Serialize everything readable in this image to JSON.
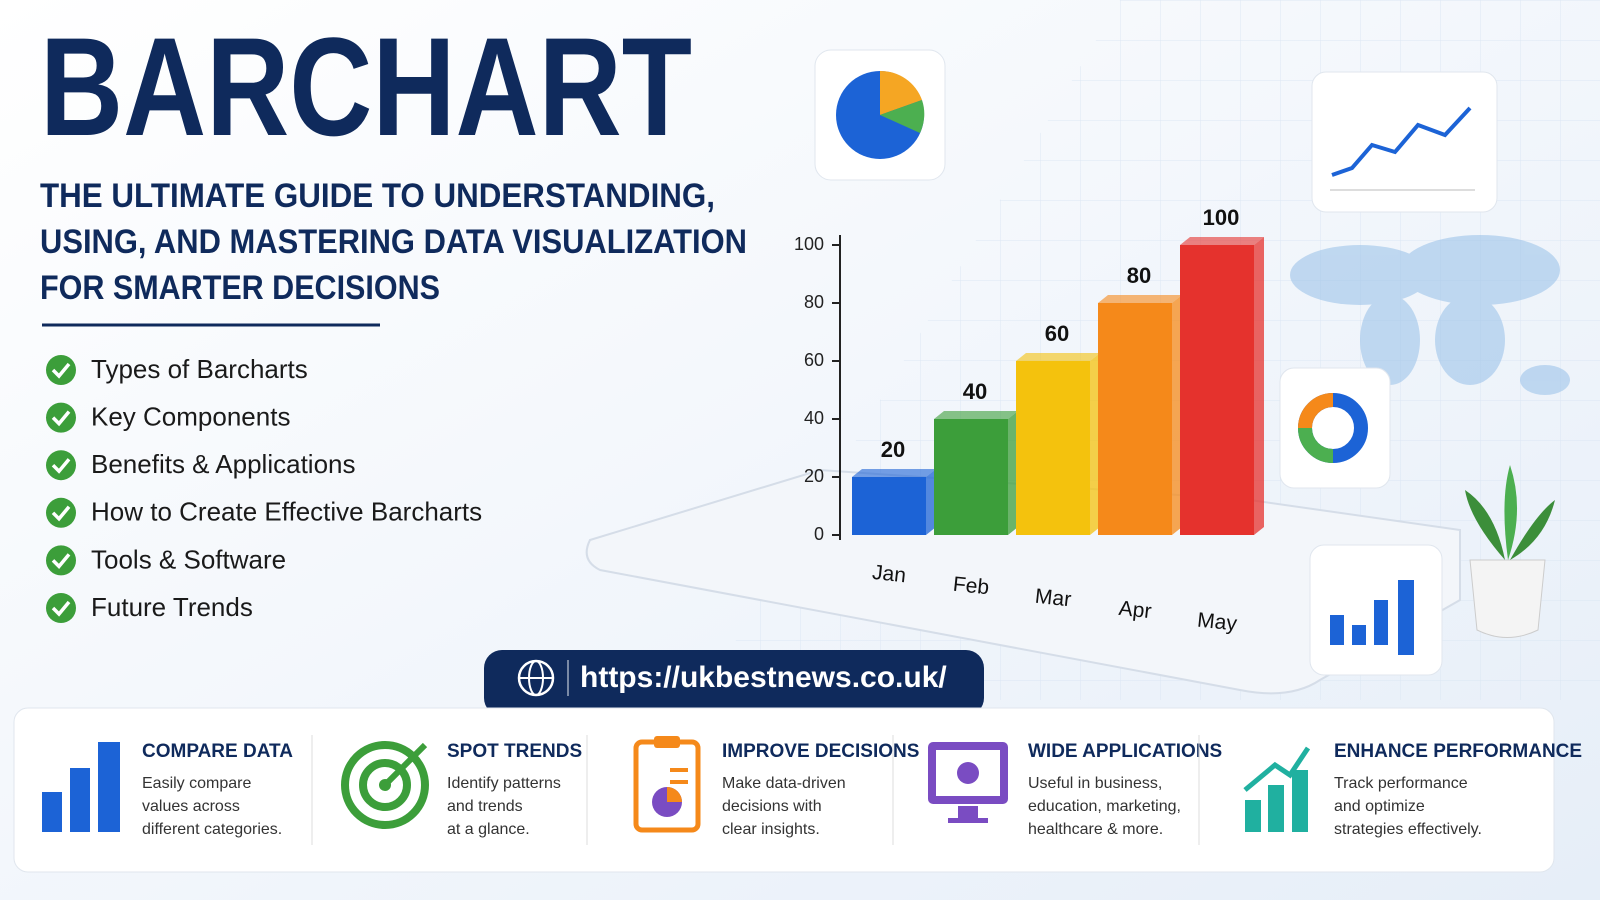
{
  "header": {
    "title": "BARCHART",
    "subtitle": [
      "THE ULTIMATE GUIDE TO UNDERSTANDING,",
      "USING, AND MASTERING DATA VISUALIZATION",
      "FOR SMARTER DECISIONS"
    ]
  },
  "checklist": [
    "Types of Barcharts",
    "Key Components",
    "Benefits & Applications",
    "How to Create Effective Barcharts",
    "Tools & Software",
    "Future Trends"
  ],
  "url": "https://ukbestnews.co.uk/",
  "features": [
    {
      "title": "COMPARE DATA",
      "lines": [
        "Easily compare",
        "values across",
        "different categories."
      ]
    },
    {
      "title": "SPOT TRENDS",
      "lines": [
        "Identify patterns",
        "and trends",
        "at a glance."
      ]
    },
    {
      "title": "IMPROVE DECISIONS",
      "lines": [
        "Make data-driven",
        "decisions with",
        "clear insights."
      ]
    },
    {
      "title": "WIDE APPLICATIONS",
      "lines": [
        "Useful in business,",
        "education, marketing,",
        "healthcare & more."
      ]
    },
    {
      "title": "ENHANCE PERFORMANCE",
      "lines": [
        "Track performance",
        "and optimize",
        "strategies effectively."
      ]
    }
  ],
  "chart_data": {
    "type": "bar",
    "categories": [
      "Jan",
      "Feb",
      "Mar",
      "Apr",
      "May"
    ],
    "values": [
      20,
      40,
      60,
      80,
      100
    ],
    "colors": [
      "#1c63d6",
      "#3c9e3a",
      "#f4c20d",
      "#f5891a",
      "#e5322d"
    ],
    "ylim": [
      0,
      100
    ],
    "yticks": [
      0,
      20,
      40,
      60,
      80,
      100
    ]
  }
}
